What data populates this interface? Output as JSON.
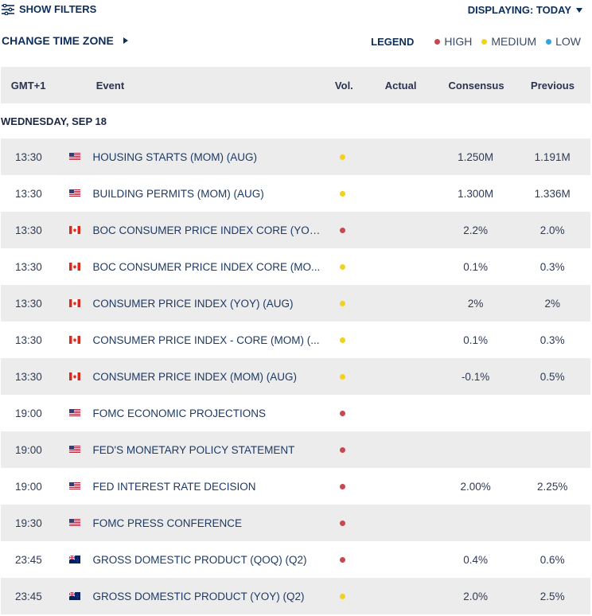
{
  "toolbar": {
    "show_filters": "SHOW FILTERS",
    "displaying": "DISPLAYING: TODAY",
    "change_tz": "CHANGE TIME ZONE"
  },
  "legend": {
    "title": "LEGEND",
    "items": [
      {
        "label": "HIGH",
        "color": "#c9474d"
      },
      {
        "label": "MEDIUM",
        "color": "#f2d21a"
      },
      {
        "label": "LOW",
        "color": "#2fa6e0"
      }
    ]
  },
  "table": {
    "headers": {
      "time": "GMT+1",
      "event": "Event",
      "vol": "Vol.",
      "actual": "Actual",
      "consensus": "Consensus",
      "previous": "Previous"
    },
    "day": "WEDNESDAY, SEP 18",
    "rows": [
      {
        "time": "13:30",
        "country": "us",
        "event": "HOUSING STARTS (MOM) (AUG)",
        "vol": "medium",
        "actual": "",
        "consensus": "1.250M",
        "previous": "1.191M"
      },
      {
        "time": "13:30",
        "country": "us",
        "event": "BUILDING PERMITS (MOM) (AUG)",
        "vol": "medium",
        "actual": "",
        "consensus": "1.300M",
        "previous": "1.336M"
      },
      {
        "time": "13:30",
        "country": "ca",
        "event": "BOC CONSUMER PRICE INDEX CORE (YOY...",
        "vol": "high",
        "actual": "",
        "consensus": "2.2%",
        "previous": "2.0%"
      },
      {
        "time": "13:30",
        "country": "ca",
        "event": "BOC CONSUMER PRICE INDEX CORE (MO...",
        "vol": "medium",
        "actual": "",
        "consensus": "0.1%",
        "previous": "0.3%"
      },
      {
        "time": "13:30",
        "country": "ca",
        "event": "CONSUMER PRICE INDEX (YOY) (AUG)",
        "vol": "medium",
        "actual": "",
        "consensus": "2%",
        "previous": "2%"
      },
      {
        "time": "13:30",
        "country": "ca",
        "event": "CONSUMER PRICE INDEX - CORE (MOM) (...",
        "vol": "medium",
        "actual": "",
        "consensus": "0.1%",
        "previous": "0.3%"
      },
      {
        "time": "13:30",
        "country": "ca",
        "event": "CONSUMER PRICE INDEX (MOM) (AUG)",
        "vol": "medium",
        "actual": "",
        "consensus": "-0.1%",
        "previous": "0.5%"
      },
      {
        "time": "19:00",
        "country": "us",
        "event": "FOMC ECONOMIC PROJECTIONS",
        "vol": "high",
        "actual": "",
        "consensus": "",
        "previous": ""
      },
      {
        "time": "19:00",
        "country": "us",
        "event": "FED'S MONETARY POLICY STATEMENT",
        "vol": "high",
        "actual": "",
        "consensus": "",
        "previous": ""
      },
      {
        "time": "19:00",
        "country": "us",
        "event": "FED INTEREST RATE DECISION",
        "vol": "high",
        "actual": "",
        "consensus": "2.00%",
        "previous": "2.25%"
      },
      {
        "time": "19:30",
        "country": "us",
        "event": "FOMC PRESS CONFERENCE",
        "vol": "high",
        "actual": "",
        "consensus": "",
        "previous": ""
      },
      {
        "time": "23:45",
        "country": "nz",
        "event": "GROSS DOMESTIC PRODUCT (QOQ) (Q2)",
        "vol": "high",
        "actual": "",
        "consensus": "0.4%",
        "previous": "0.6%"
      },
      {
        "time": "23:45",
        "country": "nz",
        "event": "GROSS DOMESTIC PRODUCT (YOY) (Q2)",
        "vol": "medium",
        "actual": "",
        "consensus": "2.0%",
        "previous": "2.5%"
      }
    ]
  },
  "vol_colors": {
    "high": "#c9474d",
    "medium": "#f2d21a",
    "low": "#2fa6e0"
  },
  "flag_icons": {
    "us": "us-flag-icon",
    "ca": "canada-flag-icon",
    "nz": "new-zealand-flag-icon"
  }
}
